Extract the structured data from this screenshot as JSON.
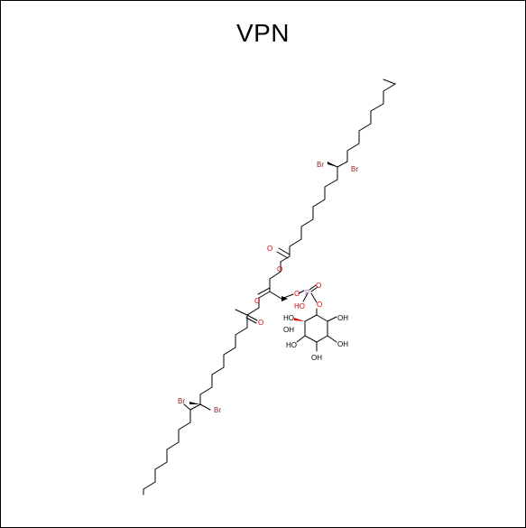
{
  "title": "VPN",
  "colors": {
    "bond": "#000000",
    "bromine": "#8b1a1a",
    "oxygen": "#e00000",
    "phosphorus": "#cc66cc"
  },
  "atom_labels": {
    "br1": "Br",
    "br2": "Br",
    "br3": "Br",
    "br4": "Br",
    "o_ester_top": "O",
    "o_carbonyl_top": "O",
    "o_ester_left": "O",
    "o_carbonyl_left": "O",
    "o_phosphate_left": "O",
    "p": "P",
    "o_p_double": "O",
    "o_p_hydroxyl": "HO",
    "o_inositol_link": "O",
    "oh_1": "HO",
    "oh_2": "OH",
    "oh_3": "OH",
    "oh_4": "HO",
    "oh_5": "OH",
    "oh_6": "OH"
  }
}
